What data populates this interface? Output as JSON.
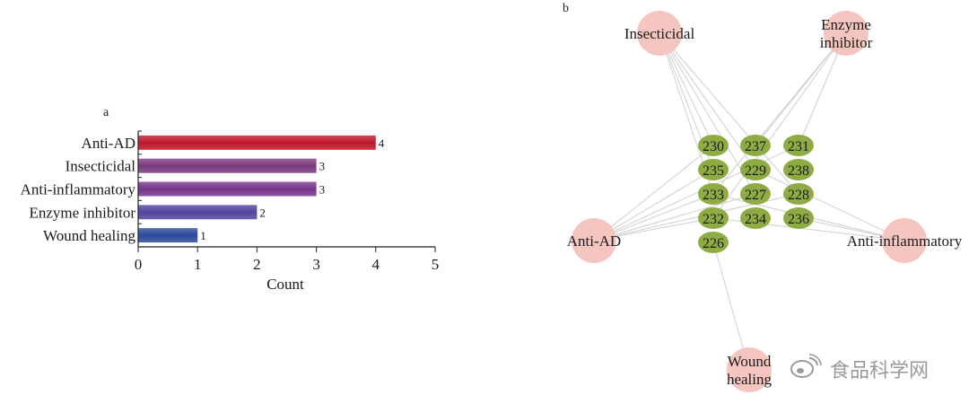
{
  "chart_data": [
    {
      "panel": "a",
      "type": "bar",
      "orientation": "horizontal",
      "categories": [
        "Anti-AD",
        "Insecticidal",
        "Anti-inflammatory",
        "Enzyme inhibitor",
        "Wound healing"
      ],
      "values": [
        4,
        3,
        3,
        2,
        1
      ],
      "data_labels": [
        "4",
        "3",
        "3",
        "2",
        "1"
      ],
      "colors": [
        "#c0162c",
        "#7a3a7e",
        "#75358b",
        "#52459e",
        "#2b4a9a"
      ],
      "xlabel": "Count",
      "ylabel": "",
      "xlim": [
        0,
        5
      ],
      "xticks": [
        "0",
        "1",
        "2",
        "3",
        "4",
        "5"
      ],
      "grid": false
    },
    {
      "panel": "b",
      "type": "network",
      "activity_nodes": [
        {
          "id": "insecticidal",
          "label_lines": [
            "Insecticidal"
          ]
        },
        {
          "id": "enzyme",
          "label_lines": [
            "Enzyme",
            "inhibitor"
          ]
        },
        {
          "id": "antiad",
          "label_lines": [
            "Anti-AD"
          ]
        },
        {
          "id": "antiinfl",
          "label_lines": [
            "Anti-inflammatory"
          ]
        },
        {
          "id": "wound",
          "label_lines": [
            "Wound",
            "healing"
          ]
        }
      ],
      "compound_nodes": [
        {
          "id": "230",
          "label": "230"
        },
        {
          "id": "237",
          "label": "237"
        },
        {
          "id": "231",
          "label": "231"
        },
        {
          "id": "235",
          "label": "235"
        },
        {
          "id": "229",
          "label": "229"
        },
        {
          "id": "238",
          "label": "238"
        },
        {
          "id": "233",
          "label": "233"
        },
        {
          "id": "227",
          "label": "227"
        },
        {
          "id": "228",
          "label": "228"
        },
        {
          "id": "232",
          "label": "232"
        },
        {
          "id": "234",
          "label": "234"
        },
        {
          "id": "236",
          "label": "236"
        },
        {
          "id": "226",
          "label": "226"
        }
      ],
      "edges": [
        [
          "insecticidal",
          "230"
        ],
        [
          "insecticidal",
          "235"
        ],
        [
          "insecticidal",
          "233"
        ],
        [
          "insecticidal",
          "229"
        ],
        [
          "insecticidal",
          "227"
        ],
        [
          "insecticidal",
          "228"
        ],
        [
          "enzyme",
          "237"
        ],
        [
          "enzyme",
          "231"
        ],
        [
          "enzyme",
          "233"
        ],
        [
          "enzyme",
          "232"
        ],
        [
          "antiad",
          "230"
        ],
        [
          "antiad",
          "235"
        ],
        [
          "antiad",
          "233"
        ],
        [
          "antiad",
          "227"
        ],
        [
          "antiad",
          "228"
        ],
        [
          "antiad",
          "232"
        ],
        [
          "antiad",
          "231"
        ],
        [
          "antiinfl",
          "229"
        ],
        [
          "antiinfl",
          "236"
        ],
        [
          "antiinfl",
          "232"
        ],
        [
          "antiinfl",
          "233"
        ],
        [
          "wound",
          "226"
        ]
      ],
      "activity_color": "#f5c6c0",
      "compound_color": "#8eac43",
      "edge_color": "#cfcfcf"
    }
  ],
  "watermark": {
    "text": "食品科学网",
    "icon": "weibo-icon"
  }
}
